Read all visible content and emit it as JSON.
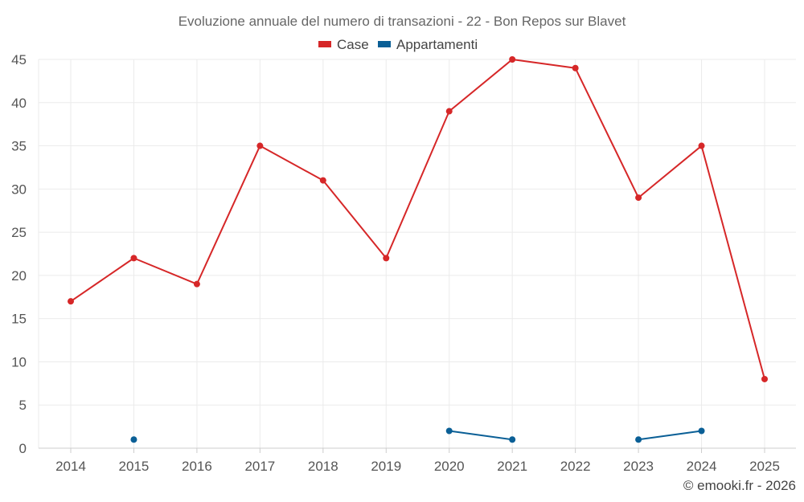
{
  "chart_data": {
    "type": "line",
    "title": "Evoluzione annuale del numero di transazioni - 22 - Bon Repos sur Blavet",
    "categories": [
      "2014",
      "2015",
      "2016",
      "2017",
      "2018",
      "2019",
      "2020",
      "2021",
      "2022",
      "2023",
      "2024",
      "2025"
    ],
    "series": [
      {
        "name": "Case",
        "color": "#d62728",
        "values": [
          17,
          22,
          19,
          35,
          31,
          22,
          39,
          45,
          44,
          29,
          35,
          8
        ]
      },
      {
        "name": "Appartamenti",
        "color": "#0a5f96",
        "values": [
          null,
          1,
          null,
          null,
          null,
          null,
          2,
          1,
          null,
          1,
          2,
          null
        ]
      }
    ],
    "ylim": [
      0,
      45
    ],
    "yticks": [
      0,
      5,
      10,
      15,
      20,
      25,
      30,
      35,
      40,
      45
    ],
    "xlabel": "",
    "ylabel": "",
    "grid": true,
    "legend_position": "top-center"
  },
  "footer": "© emooki.fr - 2026"
}
